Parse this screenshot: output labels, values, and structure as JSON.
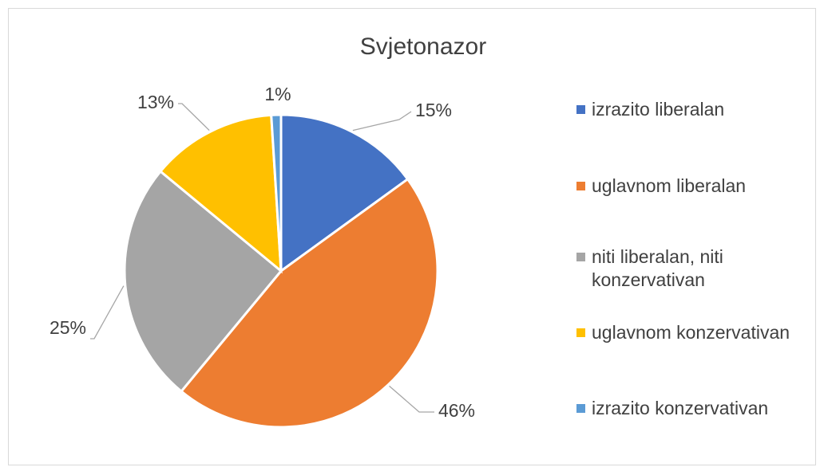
{
  "chart_data": {
    "type": "pie",
    "title": "Svjetonazor",
    "series": [
      {
        "name": "izrazito liberalan",
        "color": "#4472c4"
      },
      {
        "name": "uglavnom liberalan",
        "color": "#ed7d31"
      },
      {
        "name": "niti liberalan, niti konzervativan",
        "color": "#a5a5a5"
      },
      {
        "name": "uglavnom konzervativan",
        "color": "#ffc000"
      },
      {
        "name": "izrazito konzervativan",
        "color": "#5b9bd5"
      }
    ],
    "values": [
      15,
      46,
      25,
      13,
      1
    ],
    "value_labels": [
      "15%",
      "46%",
      "25%",
      "13%",
      "1%"
    ],
    "legend": "right"
  }
}
